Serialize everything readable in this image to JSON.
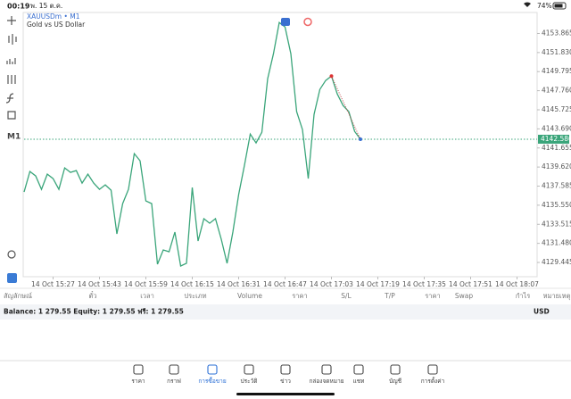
{
  "status_bar": {
    "time": "00:19",
    "date": "พ. 15 ต.ค.",
    "battery": "74%"
  },
  "toolbar": {
    "timeframe": "M1"
  },
  "chart_data": {
    "type": "line",
    "title": "XAUUSDm • M1",
    "subtitle": "Gold vs US Dollar",
    "color": "#3aa57a",
    "categories": [
      null,
      null,
      null,
      null,
      null,
      "14 Oct 15:27",
      null,
      null,
      null,
      null,
      null,
      null,
      null,
      "14 Oct 15:43",
      null,
      null,
      null,
      null,
      null,
      null,
      null,
      "14 Oct 15:59",
      null,
      null,
      null,
      null,
      null,
      null,
      null,
      "14 Oct 16:15",
      null,
      null,
      null,
      null,
      null,
      null,
      null,
      "14 Oct 16:31",
      null,
      null,
      null,
      null,
      null,
      null,
      null,
      "14 Oct 16:47",
      null,
      null,
      null,
      null,
      null,
      null,
      null,
      "14 Oct 17:03",
      null,
      null,
      null,
      null,
      null,
      null,
      null,
      "14 Oct 17:19",
      null,
      null,
      null,
      null,
      null,
      null,
      null,
      "14 Oct 17:35",
      null,
      null,
      null,
      null,
      null,
      null,
      null,
      "14 Oct 17:51",
      null,
      null,
      null,
      null,
      null,
      null,
      null,
      "14 Oct 18:07",
      null,
      null
    ],
    "values": [
      4136.96,
      4139.15,
      4138.67,
      4137.24,
      4138.86,
      4138.39,
      4137.24,
      4139.53,
      4139.05,
      4139.24,
      4137.91,
      4138.86,
      4137.91,
      4137.24,
      4137.72,
      4137.15,
      4132.49,
      4135.72,
      4137.24,
      4141.05,
      4140.29,
      4136.01,
      4135.72,
      4129.26,
      4130.78,
      4130.59,
      4132.68,
      4129.07,
      4129.35,
      4137.43,
      4131.73,
      4134.11,
      4133.63,
      4134.11,
      4131.92,
      4129.35,
      4132.68,
      4136.68,
      4139.81,
      4143.14,
      4142.19,
      4143.33,
      4149.04,
      4151.7,
      4155.03,
      4154.55,
      4151.7,
      4145.52,
      4143.62,
      4138.39,
      4145.23,
      4147.89,
      4148.85,
      4149.32,
      4147.42,
      4146.18,
      4145.52,
      4143.42,
      4142.586,
      null,
      null,
      null,
      null,
      null,
      null,
      null,
      null,
      null,
      null,
      null,
      null,
      null,
      null,
      null,
      null,
      null,
      null,
      null,
      null,
      null,
      null,
      null,
      null,
      null,
      null,
      null,
      null,
      null
    ],
    "ylim": [
      4128.4,
      4156.1
    ],
    "yticks": [
      4129.445,
      {
        "value": 4131.48,
        "label": "4131.480"
      },
      4133.515,
      {
        "value": 4135.55,
        "label": "4135.550"
      },
      4137.585,
      {
        "value": 4139.62,
        "label": "4139.620"
      },
      4141.655,
      {
        "value": 4143.69,
        "label": "4143.690"
      },
      4145.725,
      {
        "value": 4147.76,
        "label": "4147.760"
      },
      4149.795,
      {
        "value": 4151.83,
        "label": "4151.830"
      },
      4153.865
    ],
    "current_price": 4142.586
  },
  "table": {
    "columns": [
      "สัญลักษณ์",
      "ตั๋ว",
      "เวลา",
      "ประเภท",
      "Volume",
      "ราคา",
      "S/L",
      "T/P",
      "ราคา",
      "Swap",
      "กำไร",
      "หมายเหตุ"
    ]
  },
  "account": {
    "summary": "Balance: 1 279.55 Equity: 1 279.55 ฟรี: 1 279.55",
    "currency": "USD"
  },
  "tabs": [
    "ราคา",
    "กราฟ",
    "การซื้อขาย",
    "ประวัติ",
    "ข่าว",
    "กล่องจดหมาย",
    "แชท",
    "บัญชี",
    "การตั้งค่า"
  ]
}
